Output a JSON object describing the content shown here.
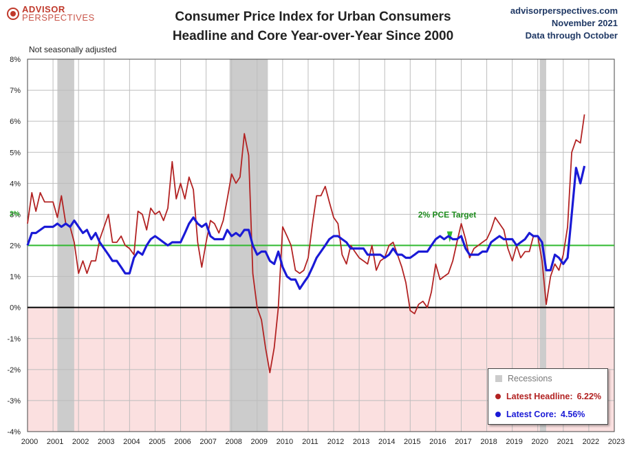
{
  "header": {
    "logo_line1": "ADVISOR",
    "logo_line2": "PERSPECTIVES",
    "title_line1": "Consumer Price Index for Urban Consumers",
    "title_line2": "Headline and Core Year-over-Year Since 2000",
    "source_site": "advisorperspectives.com",
    "source_date": "November 2021",
    "source_note": "Data through October"
  },
  "chart_data": {
    "type": "line",
    "note": "Not seasonally adjusted",
    "ylim": [
      -4,
      8
    ],
    "xlim": [
      2000,
      2023
    ],
    "y_ticks": [
      8,
      7,
      6,
      5,
      4,
      3,
      2,
      1,
      0,
      -1,
      -2,
      -3,
      -4
    ],
    "y_tick_labels": [
      "8%",
      "7%",
      "6%",
      "5%",
      "4%",
      "3%",
      "2%",
      "1%",
      "0%",
      "-1%",
      "-2%",
      "-3%",
      "-4%"
    ],
    "x_ticks": [
      2000,
      2001,
      2002,
      2003,
      2004,
      2005,
      2006,
      2007,
      2008,
      2009,
      2010,
      2011,
      2012,
      2013,
      2014,
      2015,
      2016,
      2017,
      2018,
      2019,
      2020,
      2021,
      2022,
      2023
    ],
    "target": {
      "value": 2,
      "label": "2% PCE Target",
      "axis_label": "2%",
      "color": "#2eb82e"
    },
    "recessions": [
      [
        2001.17,
        2001.83
      ],
      [
        2007.92,
        2009.42
      ],
      [
        2020.08,
        2020.33
      ]
    ],
    "colors": {
      "headline": "#b22222",
      "core": "#1a1ad6",
      "recession": "#cccccc",
      "negative_zone": "#fbe0e0"
    },
    "series": [
      {
        "name": "Headline",
        "points": [
          [
            2000.0,
            2.7
          ],
          [
            2000.17,
            3.7
          ],
          [
            2000.33,
            3.1
          ],
          [
            2000.5,
            3.7
          ],
          [
            2000.67,
            3.4
          ],
          [
            2000.83,
            3.4
          ],
          [
            2001.0,
            3.4
          ],
          [
            2001.17,
            2.9
          ],
          [
            2001.33,
            3.6
          ],
          [
            2001.5,
            2.7
          ],
          [
            2001.67,
            2.6
          ],
          [
            2001.83,
            2.1
          ],
          [
            2002.0,
            1.1
          ],
          [
            2002.17,
            1.5
          ],
          [
            2002.33,
            1.1
          ],
          [
            2002.5,
            1.5
          ],
          [
            2002.67,
            1.5
          ],
          [
            2002.83,
            2.2
          ],
          [
            2003.0,
            2.6
          ],
          [
            2003.17,
            3.0
          ],
          [
            2003.33,
            2.1
          ],
          [
            2003.5,
            2.1
          ],
          [
            2003.67,
            2.3
          ],
          [
            2003.83,
            2.0
          ],
          [
            2004.0,
            1.9
          ],
          [
            2004.17,
            1.7
          ],
          [
            2004.33,
            3.1
          ],
          [
            2004.5,
            3.0
          ],
          [
            2004.67,
            2.5
          ],
          [
            2004.83,
            3.2
          ],
          [
            2005.0,
            3.0
          ],
          [
            2005.17,
            3.1
          ],
          [
            2005.33,
            2.8
          ],
          [
            2005.5,
            3.2
          ],
          [
            2005.67,
            4.7
          ],
          [
            2005.83,
            3.5
          ],
          [
            2006.0,
            4.0
          ],
          [
            2006.17,
            3.5
          ],
          [
            2006.33,
            4.2
          ],
          [
            2006.5,
            3.8
          ],
          [
            2006.67,
            2.1
          ],
          [
            2006.83,
            1.3
          ],
          [
            2007.0,
            2.1
          ],
          [
            2007.17,
            2.8
          ],
          [
            2007.33,
            2.7
          ],
          [
            2007.5,
            2.4
          ],
          [
            2007.67,
            2.8
          ],
          [
            2007.83,
            3.5
          ],
          [
            2008.0,
            4.3
          ],
          [
            2008.17,
            4.0
          ],
          [
            2008.33,
            4.2
          ],
          [
            2008.5,
            5.6
          ],
          [
            2008.67,
            4.9
          ],
          [
            2008.83,
            1.1
          ],
          [
            2009.0,
            0.0
          ],
          [
            2009.17,
            -0.4
          ],
          [
            2009.33,
            -1.3
          ],
          [
            2009.5,
            -2.1
          ],
          [
            2009.67,
            -1.3
          ],
          [
            2009.83,
            0.0
          ],
          [
            2010.0,
            2.6
          ],
          [
            2010.17,
            2.3
          ],
          [
            2010.33,
            2.0
          ],
          [
            2010.5,
            1.2
          ],
          [
            2010.67,
            1.1
          ],
          [
            2010.83,
            1.2
          ],
          [
            2011.0,
            1.6
          ],
          [
            2011.17,
            2.7
          ],
          [
            2011.33,
            3.6
          ],
          [
            2011.5,
            3.6
          ],
          [
            2011.67,
            3.9
          ],
          [
            2011.83,
            3.4
          ],
          [
            2012.0,
            2.9
          ],
          [
            2012.17,
            2.7
          ],
          [
            2012.33,
            1.7
          ],
          [
            2012.5,
            1.4
          ],
          [
            2012.67,
            2.0
          ],
          [
            2012.83,
            1.8
          ],
          [
            2013.0,
            1.6
          ],
          [
            2013.17,
            1.5
          ],
          [
            2013.33,
            1.4
          ],
          [
            2013.5,
            2.0
          ],
          [
            2013.67,
            1.2
          ],
          [
            2013.83,
            1.5
          ],
          [
            2014.0,
            1.6
          ],
          [
            2014.17,
            2.0
          ],
          [
            2014.33,
            2.1
          ],
          [
            2014.5,
            1.7
          ],
          [
            2014.67,
            1.3
          ],
          [
            2014.83,
            0.8
          ],
          [
            2015.0,
            -0.1
          ],
          [
            2015.17,
            -0.2
          ],
          [
            2015.33,
            0.1
          ],
          [
            2015.5,
            0.2
          ],
          [
            2015.67,
            0.0
          ],
          [
            2015.83,
            0.5
          ],
          [
            2016.0,
            1.4
          ],
          [
            2016.17,
            0.9
          ],
          [
            2016.33,
            1.0
          ],
          [
            2016.5,
            1.1
          ],
          [
            2016.67,
            1.5
          ],
          [
            2016.83,
            2.1
          ],
          [
            2017.0,
            2.7
          ],
          [
            2017.17,
            2.2
          ],
          [
            2017.33,
            1.6
          ],
          [
            2017.5,
            1.9
          ],
          [
            2017.67,
            2.0
          ],
          [
            2017.83,
            2.1
          ],
          [
            2018.0,
            2.2
          ],
          [
            2018.17,
            2.5
          ],
          [
            2018.33,
            2.9
          ],
          [
            2018.5,
            2.7
          ],
          [
            2018.67,
            2.5
          ],
          [
            2018.83,
            1.9
          ],
          [
            2019.0,
            1.5
          ],
          [
            2019.17,
            2.0
          ],
          [
            2019.33,
            1.6
          ],
          [
            2019.5,
            1.8
          ],
          [
            2019.67,
            1.8
          ],
          [
            2019.83,
            2.3
          ],
          [
            2020.0,
            2.3
          ],
          [
            2020.17,
            1.5
          ],
          [
            2020.33,
            0.1
          ],
          [
            2020.5,
            1.0
          ],
          [
            2020.67,
            1.4
          ],
          [
            2020.83,
            1.2
          ],
          [
            2021.0,
            1.7
          ],
          [
            2021.17,
            2.6
          ],
          [
            2021.33,
            5.0
          ],
          [
            2021.5,
            5.4
          ],
          [
            2021.67,
            5.3
          ],
          [
            2021.83,
            6.22
          ]
        ]
      },
      {
        "name": "Core",
        "points": [
          [
            2000.0,
            2.0
          ],
          [
            2000.17,
            2.4
          ],
          [
            2000.33,
            2.4
          ],
          [
            2000.5,
            2.5
          ],
          [
            2000.67,
            2.6
          ],
          [
            2000.83,
            2.6
          ],
          [
            2001.0,
            2.6
          ],
          [
            2001.17,
            2.7
          ],
          [
            2001.33,
            2.6
          ],
          [
            2001.5,
            2.7
          ],
          [
            2001.67,
            2.6
          ],
          [
            2001.83,
            2.8
          ],
          [
            2002.0,
            2.6
          ],
          [
            2002.17,
            2.4
          ],
          [
            2002.33,
            2.5
          ],
          [
            2002.5,
            2.2
          ],
          [
            2002.67,
            2.4
          ],
          [
            2002.83,
            2.1
          ],
          [
            2003.0,
            1.9
          ],
          [
            2003.17,
            1.7
          ],
          [
            2003.33,
            1.5
          ],
          [
            2003.5,
            1.5
          ],
          [
            2003.67,
            1.3
          ],
          [
            2003.83,
            1.1
          ],
          [
            2004.0,
            1.1
          ],
          [
            2004.17,
            1.6
          ],
          [
            2004.33,
            1.8
          ],
          [
            2004.5,
            1.7
          ],
          [
            2004.67,
            2.0
          ],
          [
            2004.83,
            2.2
          ],
          [
            2005.0,
            2.3
          ],
          [
            2005.17,
            2.2
          ],
          [
            2005.33,
            2.1
          ],
          [
            2005.5,
            2.0
          ],
          [
            2005.67,
            2.1
          ],
          [
            2005.83,
            2.1
          ],
          [
            2006.0,
            2.1
          ],
          [
            2006.17,
            2.4
          ],
          [
            2006.33,
            2.7
          ],
          [
            2006.5,
            2.9
          ],
          [
            2006.67,
            2.7
          ],
          [
            2006.83,
            2.6
          ],
          [
            2007.0,
            2.7
          ],
          [
            2007.17,
            2.3
          ],
          [
            2007.33,
            2.2
          ],
          [
            2007.5,
            2.2
          ],
          [
            2007.67,
            2.2
          ],
          [
            2007.83,
            2.5
          ],
          [
            2008.0,
            2.3
          ],
          [
            2008.17,
            2.4
          ],
          [
            2008.33,
            2.3
          ],
          [
            2008.5,
            2.5
          ],
          [
            2008.67,
            2.5
          ],
          [
            2008.83,
            2.0
          ],
          [
            2009.0,
            1.7
          ],
          [
            2009.17,
            1.8
          ],
          [
            2009.33,
            1.8
          ],
          [
            2009.5,
            1.5
          ],
          [
            2009.67,
            1.4
          ],
          [
            2009.83,
            1.8
          ],
          [
            2010.0,
            1.3
          ],
          [
            2010.17,
            1.0
          ],
          [
            2010.33,
            0.9
          ],
          [
            2010.5,
            0.9
          ],
          [
            2010.67,
            0.6
          ],
          [
            2010.83,
            0.8
          ],
          [
            2011.0,
            1.0
          ],
          [
            2011.17,
            1.3
          ],
          [
            2011.33,
            1.6
          ],
          [
            2011.5,
            1.8
          ],
          [
            2011.67,
            2.0
          ],
          [
            2011.83,
            2.2
          ],
          [
            2012.0,
            2.3
          ],
          [
            2012.17,
            2.3
          ],
          [
            2012.33,
            2.2
          ],
          [
            2012.5,
            2.1
          ],
          [
            2012.67,
            1.9
          ],
          [
            2012.83,
            1.9
          ],
          [
            2013.0,
            1.9
          ],
          [
            2013.17,
            1.9
          ],
          [
            2013.33,
            1.7
          ],
          [
            2013.5,
            1.7
          ],
          [
            2013.67,
            1.7
          ],
          [
            2013.83,
            1.7
          ],
          [
            2014.0,
            1.6
          ],
          [
            2014.17,
            1.7
          ],
          [
            2014.33,
            1.9
          ],
          [
            2014.5,
            1.7
          ],
          [
            2014.67,
            1.7
          ],
          [
            2014.83,
            1.6
          ],
          [
            2015.0,
            1.6
          ],
          [
            2015.17,
            1.7
          ],
          [
            2015.33,
            1.8
          ],
          [
            2015.5,
            1.8
          ],
          [
            2015.67,
            1.8
          ],
          [
            2015.83,
            2.0
          ],
          [
            2016.0,
            2.2
          ],
          [
            2016.17,
            2.3
          ],
          [
            2016.33,
            2.2
          ],
          [
            2016.5,
            2.3
          ],
          [
            2016.67,
            2.2
          ],
          [
            2016.83,
            2.2
          ],
          [
            2017.0,
            2.3
          ],
          [
            2017.17,
            1.9
          ],
          [
            2017.33,
            1.7
          ],
          [
            2017.5,
            1.7
          ],
          [
            2017.67,
            1.7
          ],
          [
            2017.83,
            1.8
          ],
          [
            2018.0,
            1.8
          ],
          [
            2018.17,
            2.1
          ],
          [
            2018.33,
            2.2
          ],
          [
            2018.5,
            2.3
          ],
          [
            2018.67,
            2.2
          ],
          [
            2018.83,
            2.2
          ],
          [
            2019.0,
            2.2
          ],
          [
            2019.17,
            2.0
          ],
          [
            2019.33,
            2.1
          ],
          [
            2019.5,
            2.2
          ],
          [
            2019.67,
            2.4
          ],
          [
            2019.83,
            2.3
          ],
          [
            2020.0,
            2.3
          ],
          [
            2020.17,
            2.1
          ],
          [
            2020.33,
            1.2
          ],
          [
            2020.5,
            1.2
          ],
          [
            2020.67,
            1.7
          ],
          [
            2020.83,
            1.6
          ],
          [
            2021.0,
            1.4
          ],
          [
            2021.17,
            1.6
          ],
          [
            2021.33,
            3.0
          ],
          [
            2021.5,
            4.5
          ],
          [
            2021.67,
            4.0
          ],
          [
            2021.83,
            4.56
          ]
        ]
      }
    ]
  },
  "legend": {
    "recessions_label": "Recessions",
    "headline_label": "Latest Headline:",
    "headline_value": "6.22%",
    "core_label": "Latest Core:",
    "core_value": "4.56%"
  }
}
